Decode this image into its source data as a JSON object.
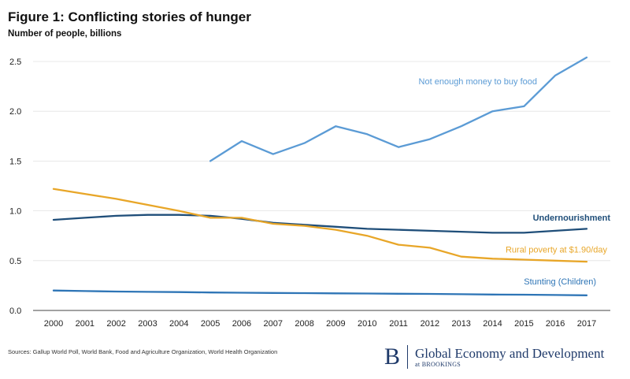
{
  "title": "Figure 1: Conflicting stories of hunger",
  "subtitle": "Number of people, billions",
  "source": "Sources: Gallup World Poll, World Bank, Food and Agriculture Organization, World Health Organization",
  "brand": {
    "logo": "B",
    "name": "Global Economy and Development",
    "sub": "at BROOKINGS"
  },
  "chart_data": {
    "type": "line",
    "x": [
      2000,
      2001,
      2002,
      2003,
      2004,
      2005,
      2006,
      2007,
      2008,
      2009,
      2010,
      2011,
      2012,
      2013,
      2014,
      2015,
      2016,
      2017
    ],
    "ylim": [
      0,
      2.5
    ],
    "yticks": [
      "0.0",
      "0.5",
      "1.0",
      "1.5",
      "2.0",
      "2.5"
    ],
    "grid": true,
    "series": [
      {
        "name": "Not enough money to buy food",
        "color": "#5b9bd5",
        "values": [
          null,
          null,
          null,
          null,
          null,
          1.5,
          1.7,
          1.57,
          1.68,
          1.85,
          1.77,
          1.64,
          1.72,
          1.85,
          2.0,
          2.05,
          2.36,
          2.54
        ]
      },
      {
        "name": "Undernourishment",
        "color": "#1f4e79",
        "values": [
          0.91,
          0.93,
          0.95,
          0.96,
          0.96,
          0.95,
          0.92,
          0.88,
          0.86,
          0.84,
          0.82,
          0.81,
          0.8,
          0.79,
          0.78,
          0.78,
          0.8,
          0.82
        ]
      },
      {
        "name": "Rural poverty at $1.90/day",
        "color": "#e8a628",
        "values": [
          1.22,
          1.17,
          1.12,
          1.06,
          1.0,
          0.93,
          0.93,
          0.87,
          0.85,
          0.81,
          0.75,
          0.66,
          0.63,
          0.54,
          0.52,
          0.51,
          0.5,
          0.49
        ]
      },
      {
        "name": "Stunting (Children)",
        "color": "#2e75b6",
        "values": [
          0.2,
          0.195,
          0.19,
          0.187,
          0.184,
          0.18,
          0.178,
          0.176,
          0.174,
          0.172,
          0.17,
          0.168,
          0.166,
          0.163,
          0.16,
          0.158,
          0.155,
          0.152
        ]
      }
    ]
  }
}
